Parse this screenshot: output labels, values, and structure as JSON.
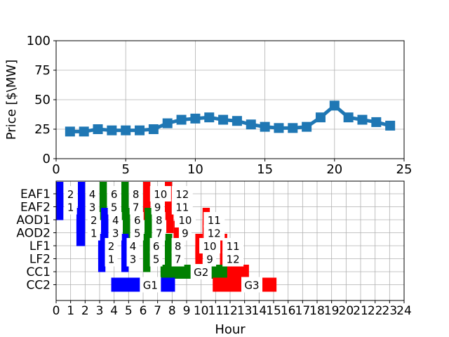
{
  "chart_data": [
    {
      "type": "line",
      "ylabel": "Price [$\\MW]",
      "xlabel": "",
      "xlim": [
        0,
        25
      ],
      "ylim": [
        0,
        100
      ],
      "xticks": [
        "0",
        "5",
        "10",
        "15",
        "20",
        "25"
      ],
      "yticks": [
        "0",
        "25",
        "50",
        "75",
        "100"
      ],
      "grid": true,
      "marker": "square",
      "color": "#1f77b4",
      "series": [
        {
          "x": [
            1,
            2,
            3,
            4,
            5,
            6,
            7,
            8,
            9,
            10,
            11,
            12,
            13,
            14,
            15,
            16,
            17,
            18,
            19,
            20,
            21,
            22,
            23,
            24
          ],
          "values": [
            23,
            23,
            25,
            24,
            24,
            24,
            25,
            30,
            33,
            34,
            35,
            33,
            32,
            29,
            27,
            26,
            26,
            27,
            35,
            45,
            35,
            33,
            31,
            28
          ]
        }
      ]
    },
    {
      "type": "gantt",
      "xlabel": "Hour",
      "xlim": [
        0,
        24
      ],
      "xticks": [
        "0",
        "1",
        "2",
        "3",
        "4",
        "5",
        "6",
        "7",
        "8",
        "9",
        "10",
        "11",
        "12",
        "13",
        "14",
        "15",
        "16",
        "17",
        "18",
        "19",
        "20",
        "21",
        "22",
        "23",
        "24"
      ],
      "rows": [
        "EAF1",
        "EAF2",
        "AOD1",
        "AOD2",
        "LF1",
        "LF2",
        "CC1",
        "CC2"
      ],
      "grid": true,
      "colors": {
        "blue": "#0000ff",
        "green": "#008000",
        "red": "#ff0000"
      },
      "bars": [
        {
          "row": "EAF1",
          "start": 0.0,
          "end": 0.5,
          "color": "blue"
        },
        {
          "row": "EAF1",
          "start": 1.5,
          "end": 2.0,
          "color": "blue"
        },
        {
          "row": "EAF1",
          "start": 3.0,
          "end": 3.5,
          "color": "green"
        },
        {
          "row": "EAF1",
          "start": 4.5,
          "end": 5.0,
          "color": "green"
        },
        {
          "row": "EAF1",
          "start": 6.0,
          "end": 6.5,
          "color": "red"
        },
        {
          "row": "EAF1",
          "start": 7.5,
          "end": 8.0,
          "color": "red"
        },
        {
          "row": "EAF2",
          "start": 0.0,
          "end": 0.5,
          "color": "blue"
        },
        {
          "row": "EAF2",
          "start": 1.5,
          "end": 2.0,
          "color": "blue"
        },
        {
          "row": "EAF2",
          "start": 3.0,
          "end": 3.5,
          "color": "green"
        },
        {
          "row": "EAF2",
          "start": 4.5,
          "end": 5.0,
          "color": "green"
        },
        {
          "row": "EAF2",
          "start": 6.0,
          "end": 6.5,
          "color": "red"
        },
        {
          "row": "EAF2",
          "start": 7.5,
          "end": 8.0,
          "color": "red"
        },
        {
          "row": "AOD1",
          "start": 1.4,
          "end": 2.0,
          "color": "blue"
        },
        {
          "row": "AOD1",
          "start": 3.1,
          "end": 3.6,
          "color": "blue"
        },
        {
          "row": "AOD1",
          "start": 4.6,
          "end": 5.1,
          "color": "green"
        },
        {
          "row": "AOD1",
          "start": 6.1,
          "end": 6.6,
          "color": "green"
        },
        {
          "row": "AOD1",
          "start": 7.6,
          "end": 8.1,
          "color": "red"
        },
        {
          "row": "AOD1",
          "start": 10.1,
          "end": 10.6,
          "color": "red"
        },
        {
          "row": "AOD2",
          "start": 1.4,
          "end": 2.0,
          "color": "blue"
        },
        {
          "row": "AOD2",
          "start": 3.1,
          "end": 3.6,
          "color": "blue"
        },
        {
          "row": "AOD2",
          "start": 4.6,
          "end": 5.1,
          "color": "green"
        },
        {
          "row": "AOD2",
          "start": 6.1,
          "end": 6.6,
          "color": "green"
        },
        {
          "row": "AOD2",
          "start": 8.1,
          "end": 8.6,
          "color": "red"
        },
        {
          "row": "AOD2",
          "start": 10.1,
          "end": 10.6,
          "color": "red"
        },
        {
          "row": "LF1",
          "start": 2.9,
          "end": 3.4,
          "color": "blue"
        },
        {
          "row": "LF1",
          "start": 4.5,
          "end": 5.0,
          "color": "blue"
        },
        {
          "row": "LF1",
          "start": 6.0,
          "end": 6.5,
          "color": "green"
        },
        {
          "row": "LF1",
          "start": 7.5,
          "end": 8.0,
          "color": "green"
        },
        {
          "row": "LF1",
          "start": 9.6,
          "end": 10.1,
          "color": "red"
        },
        {
          "row": "LF1",
          "start": 11.3,
          "end": 11.8,
          "color": "red"
        },
        {
          "row": "LF2",
          "start": 2.9,
          "end": 3.4,
          "color": "blue"
        },
        {
          "row": "LF2",
          "start": 4.5,
          "end": 5.0,
          "color": "blue"
        },
        {
          "row": "LF2",
          "start": 6.0,
          "end": 6.5,
          "color": "green"
        },
        {
          "row": "LF2",
          "start": 7.5,
          "end": 8.0,
          "color": "green"
        },
        {
          "row": "LF2",
          "start": 9.6,
          "end": 10.1,
          "color": "red"
        },
        {
          "row": "LF2",
          "start": 11.3,
          "end": 11.8,
          "color": "red"
        },
        {
          "row": "CC1",
          "start": 7.2,
          "end": 10.3,
          "color": "green"
        },
        {
          "row": "CC1",
          "start": 10.3,
          "end": 12.3,
          "color": "green"
        },
        {
          "row": "CC1",
          "start": 11.8,
          "end": 13.3,
          "color": "red"
        },
        {
          "row": "CC2",
          "start": 3.8,
          "end": 8.2,
          "color": "blue"
        },
        {
          "row": "CC2",
          "start": 10.8,
          "end": 15.2,
          "color": "red"
        }
      ],
      "labels": [
        {
          "text": "2",
          "row": "EAF1",
          "x": 1.0
        },
        {
          "text": "4",
          "row": "EAF1",
          "x": 2.5
        },
        {
          "text": "6",
          "row": "EAF1",
          "x": 4.0
        },
        {
          "text": "8",
          "row": "EAF1",
          "x": 5.5
        },
        {
          "text": "10",
          "row": "EAF1",
          "x": 7.2
        },
        {
          "text": "12",
          "row": "EAF1",
          "x": 8.7
        },
        {
          "text": "1",
          "row": "EAF2",
          "x": 1.0
        },
        {
          "text": "3",
          "row": "EAF2",
          "x": 2.5
        },
        {
          "text": "5",
          "row": "EAF2",
          "x": 4.0
        },
        {
          "text": "7",
          "row": "EAF2",
          "x": 5.5
        },
        {
          "text": "9",
          "row": "EAF2",
          "x": 7.0
        },
        {
          "text": "11",
          "row": "EAF2",
          "x": 8.7
        },
        {
          "text": "2",
          "row": "AOD1",
          "x": 2.6
        },
        {
          "text": "4",
          "row": "AOD1",
          "x": 4.1
        },
        {
          "text": "6",
          "row": "AOD1",
          "x": 5.6
        },
        {
          "text": "8",
          "row": "AOD1",
          "x": 7.1
        },
        {
          "text": "10",
          "row": "AOD1",
          "x": 8.9
        },
        {
          "text": "11",
          "row": "AOD1",
          "x": 10.9
        },
        {
          "text": "1",
          "row": "AOD2",
          "x": 2.6
        },
        {
          "text": "3",
          "row": "AOD2",
          "x": 4.1
        },
        {
          "text": "5",
          "row": "AOD2",
          "x": 5.6
        },
        {
          "text": "7",
          "row": "AOD2",
          "x": 7.1
        },
        {
          "text": "9",
          "row": "AOD2",
          "x": 8.9
        },
        {
          "text": "12",
          "row": "AOD2",
          "x": 10.9
        },
        {
          "text": "2",
          "row": "LF1",
          "x": 3.8
        },
        {
          "text": "4",
          "row": "LF1",
          "x": 5.3
        },
        {
          "text": "6",
          "row": "LF1",
          "x": 6.9
        },
        {
          "text": "8",
          "row": "LF1",
          "x": 8.4
        },
        {
          "text": "10",
          "row": "LF1",
          "x": 10.6
        },
        {
          "text": "11",
          "row": "LF1",
          "x": 12.2
        },
        {
          "text": "1",
          "row": "LF2",
          "x": 3.8
        },
        {
          "text": "3",
          "row": "LF2",
          "x": 5.3
        },
        {
          "text": "5",
          "row": "LF2",
          "x": 6.9
        },
        {
          "text": "7",
          "row": "LF2",
          "x": 8.4
        },
        {
          "text": "9",
          "row": "LF2",
          "x": 10.6
        },
        {
          "text": "12",
          "row": "LF2",
          "x": 12.2
        },
        {
          "text": "G2",
          "row": "CC1",
          "x": 10.0
        },
        {
          "text": "G1",
          "row": "CC2",
          "x": 6.5
        },
        {
          "text": "G3",
          "row": "CC2",
          "x": 13.5
        }
      ]
    }
  ]
}
